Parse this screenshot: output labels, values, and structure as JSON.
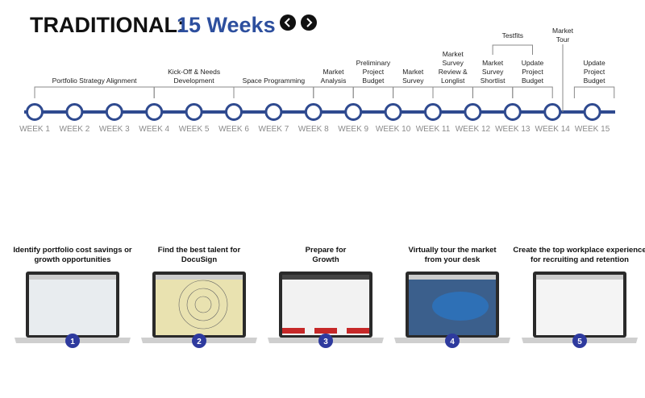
{
  "header": {
    "title": "TRADITIONAL:",
    "subtitle": "15 Weeks"
  },
  "weeks": [
    "WEEK 1",
    "WEEK 2",
    "WEEK 3",
    "WEEK 4",
    "WEEK 5",
    "WEEK 6",
    "WEEK 7",
    "WEEK 8",
    "WEEK 9",
    "WEEK 10",
    "WEEK 11",
    "WEEK 12",
    "WEEK 13",
    "WEEK 14",
    "WEEK 15"
  ],
  "phases": [
    {
      "lines": [
        "Portfolio Strategy Alignment"
      ]
    },
    {
      "lines": [
        "Kick-Off & Needs",
        "Development"
      ]
    },
    {
      "lines": [
        "Space Programming"
      ]
    },
    {
      "lines": [
        "Market",
        "Analysis"
      ]
    },
    {
      "lines": [
        "Preliminary",
        "Project",
        "Budget"
      ]
    },
    {
      "lines": [
        "Market",
        "Survey"
      ]
    },
    {
      "lines": [
        "Market",
        "Survey",
        "Review &",
        "Longlist"
      ]
    },
    {
      "lines": [
        "Market",
        "Survey",
        "Shortlist"
      ]
    },
    {
      "lines": [
        "Update",
        "Project",
        "Budget"
      ]
    },
    {
      "lines": [
        "Update",
        "Project",
        "Budget"
      ]
    }
  ],
  "testfits": "Testfits",
  "market_tour": {
    "lines": [
      "Market",
      "Tour"
    ]
  },
  "cards": [
    {
      "number": "1",
      "caption": [
        "Identify portfolio cost savings or",
        "growth opportunities"
      ]
    },
    {
      "number": "2",
      "caption": [
        "Find the best talent for",
        "DocuSign"
      ]
    },
    {
      "number": "3",
      "caption": [
        "Prepare for",
        "Growth"
      ]
    },
    {
      "number": "4",
      "caption": [
        "Virtually tour the market",
        "from your desk"
      ]
    },
    {
      "number": "5",
      "caption": [
        "Create the top workplace experience",
        "for recruiting and retention"
      ]
    }
  ]
}
